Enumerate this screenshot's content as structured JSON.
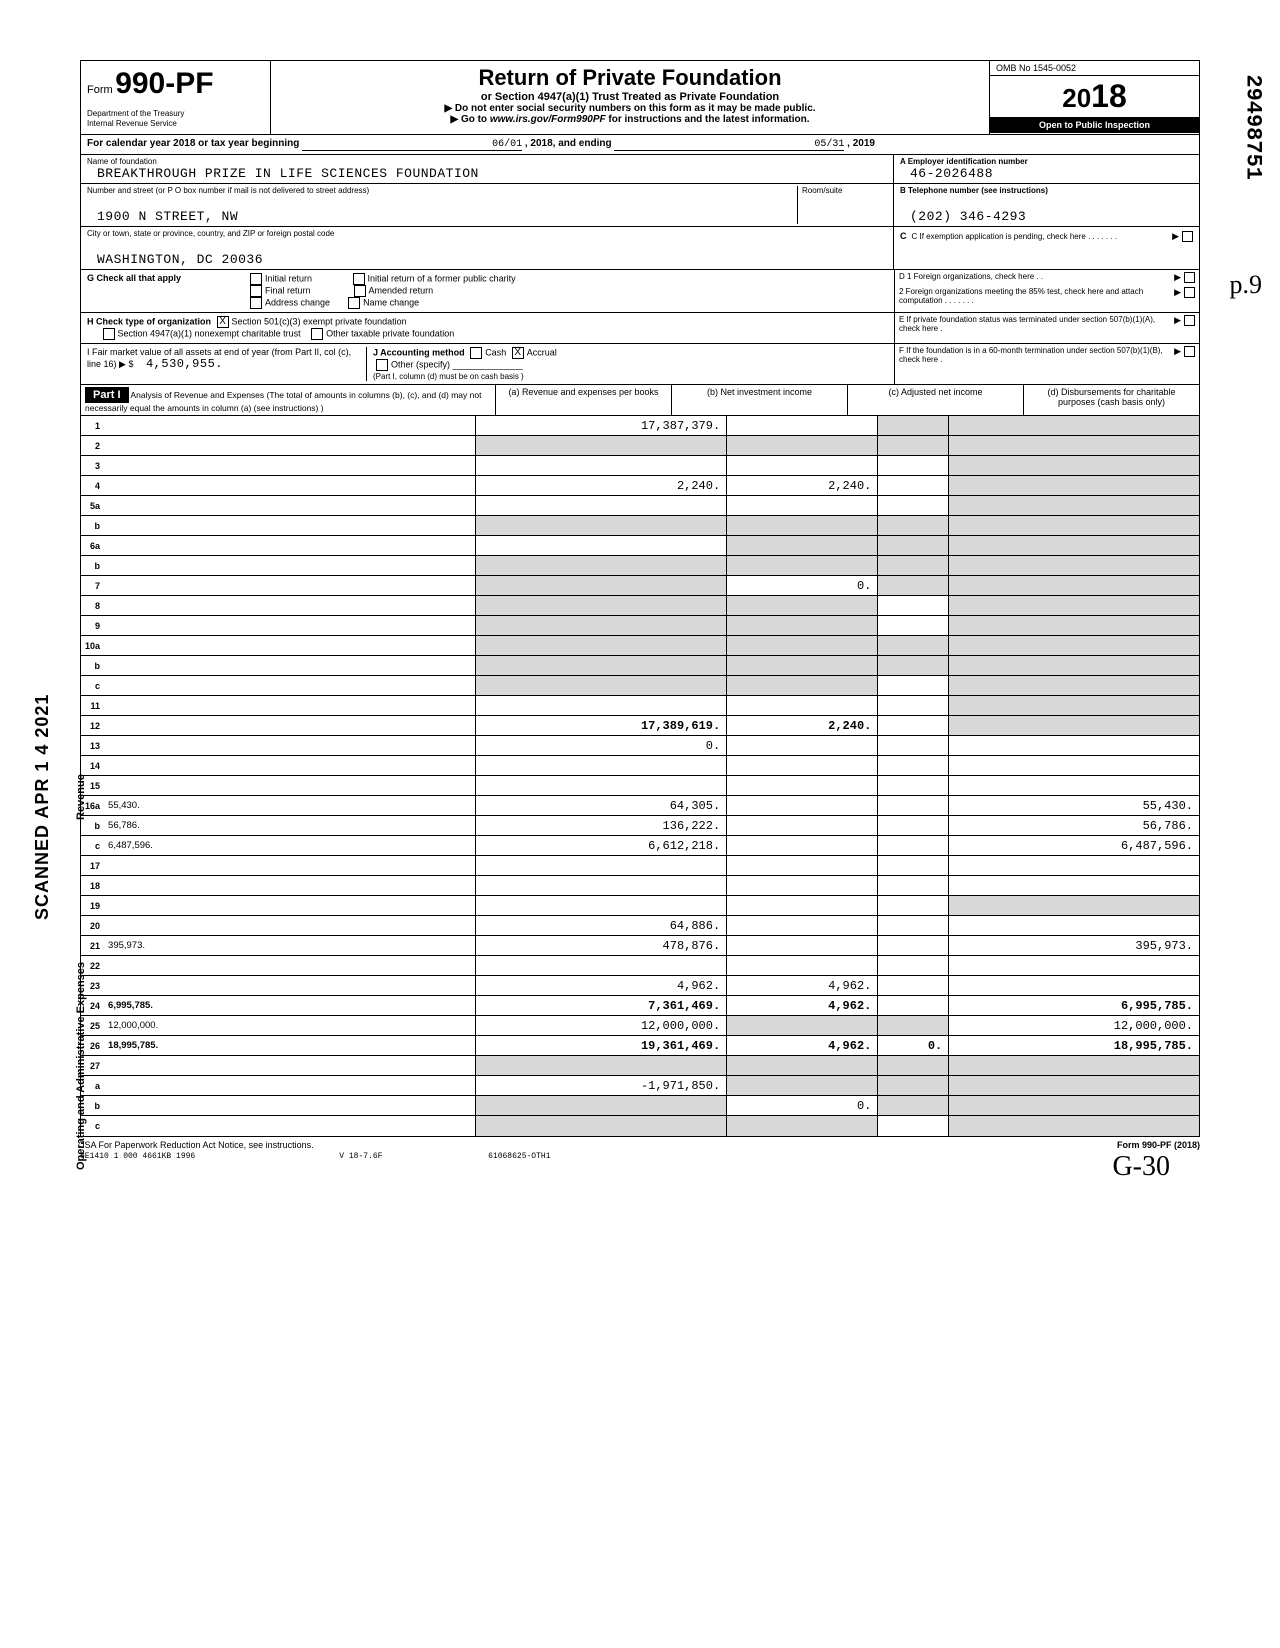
{
  "header": {
    "form_word": "Form",
    "form_number": "990-PF",
    "dept1": "Department of the Treasury",
    "dept2": "Internal Revenue Service",
    "title": "Return of Private Foundation",
    "subtitle": "or Section 4947(a)(1) Trust Treated as Private Foundation",
    "note": "▶ Do not enter social security numbers on this form as it may be made public.",
    "note2_a": "▶ Go to",
    "note2_url": "www.irs.gov/Form990PF",
    "note2_b": "for instructions and the latest information.",
    "omb": "OMB No 1545-0052",
    "year_prefix": "20",
    "year_suffix": "18",
    "open": "Open to Public Inspection"
  },
  "period": {
    "label": "For calendar year 2018 or tax year beginning",
    "start": "06/01",
    "mid": ", 2018, and ending",
    "end": "05/31",
    "endyear": ", 2019"
  },
  "entity": {
    "name_label": "Name of foundation",
    "name": "BREAKTHROUGH PRIZE IN LIFE SCIENCES FOUNDATION",
    "addr_label": "Number and street (or P O  box number if mail is not delivered to street address)",
    "addr": "1900 N STREET, NW",
    "room_label": "Room/suite",
    "city_label": "City or town, state or province, country, and ZIP or foreign postal code",
    "city": "WASHINGTON, DC 20036",
    "a_label": "A  Employer identification number",
    "ein": "46-2026488",
    "b_label": "B  Telephone number (see instructions)",
    "phone": "(202) 346-4293",
    "c_label": "C  If exemption application is pending, check here . . . . . . ."
  },
  "g": {
    "label": "G Check all that apply",
    "opts": [
      "Initial return",
      "Final return",
      "Address change",
      "Initial return of a former public charity",
      "Amended return",
      "Name change"
    ],
    "d1": "D  1  Foreign organizations, check here . .",
    "d2": "2  Foreign organizations meeting the 85% test, check here and attach computation  . . . . . . .",
    "e": "E   If private foundation status was terminated under section 507(b)(1)(A), check here  .",
    "f": "F   If the foundation is in a 60-month termination under section 507(b)(1)(B), check here  ."
  },
  "h": {
    "label": "H Check type of organization",
    "opt1": "Section 501(c)(3) exempt private foundation",
    "sub": "Section 4947(a)(1) nonexempt charitable trust",
    "opt2": "Other taxable private foundation"
  },
  "i": {
    "label": "I   Fair market value of all assets at end of year  (from Part II, col  (c), line 16) ▶  $",
    "value": "4,530,955.",
    "j_label": "J Accounting method",
    "cash": "Cash",
    "accrual": "Accrual",
    "other": "Other (specify)",
    "note": "(Part I, column (d) must be on cash basis )"
  },
  "part1": {
    "label": "Part I",
    "desc": "Analysis of Revenue and Expenses (The total of amounts in columns (b), (c), and (d) may not necessarily equal the amounts in column (a) (see instructions) )",
    "cols": {
      "a": "(a) Revenue and expenses per books",
      "b": "(b) Net investment income",
      "c": "(c) Adjusted net income",
      "d": "(d) Disbursements for charitable purposes (cash basis only)"
    }
  },
  "rows": [
    {
      "n": "1",
      "d": "",
      "a": "17,387,379.",
      "b": "",
      "c": "",
      "shade_b": false,
      "shade_c": true,
      "shade_d": true
    },
    {
      "n": "2",
      "d": "",
      "a": "",
      "b": "",
      "c": "",
      "shade_a": true,
      "shade_b": true,
      "shade_c": true,
      "shade_d": true
    },
    {
      "n": "3",
      "d": "",
      "a": "",
      "b": "",
      "c": "",
      "shade_d": true
    },
    {
      "n": "4",
      "d": "",
      "a": "2,240.",
      "b": "2,240.",
      "c": "",
      "shade_d": true
    },
    {
      "n": "5a",
      "d": "",
      "a": "",
      "b": "",
      "c": "",
      "shade_d": true
    },
    {
      "n": "b",
      "d": "",
      "a": "",
      "b": "",
      "c": "",
      "shade_a": true,
      "shade_b": true,
      "shade_c": true,
      "shade_d": true
    },
    {
      "n": "6a",
      "d": "",
      "a": "",
      "b": "",
      "c": "",
      "shade_b": true,
      "shade_c": true,
      "shade_d": true
    },
    {
      "n": "b",
      "d": "",
      "a": "",
      "b": "",
      "c": "",
      "shade_a": true,
      "shade_b": true,
      "shade_c": true,
      "shade_d": true
    },
    {
      "n": "7",
      "d": "",
      "a": "",
      "b": "0.",
      "c": "",
      "shade_a": true,
      "shade_c": true,
      "shade_d": true
    },
    {
      "n": "8",
      "d": "",
      "a": "",
      "b": "",
      "c": "",
      "shade_a": true,
      "shade_b": true,
      "shade_d": true
    },
    {
      "n": "9",
      "d": "",
      "a": "",
      "b": "",
      "c": "",
      "shade_a": true,
      "shade_b": true,
      "shade_d": true
    },
    {
      "n": "10a",
      "d": "",
      "a": "",
      "b": "",
      "c": "",
      "shade_a": true,
      "shade_b": true,
      "shade_c": true,
      "shade_d": true
    },
    {
      "n": "b",
      "d": "",
      "a": "",
      "b": "",
      "c": "",
      "shade_a": true,
      "shade_b": true,
      "shade_c": true,
      "shade_d": true
    },
    {
      "n": "c",
      "d": "",
      "a": "",
      "b": "",
      "c": "",
      "shade_a": true,
      "shade_b": true,
      "shade_d": true
    },
    {
      "n": "11",
      "d": "",
      "a": "",
      "b": "",
      "c": "",
      "shade_d": true
    },
    {
      "n": "12",
      "d": "",
      "a": "17,389,619.",
      "b": "2,240.",
      "c": "",
      "total": true,
      "shade_d": true
    },
    {
      "n": "13",
      "d": "",
      "a": "0.",
      "b": "",
      "c": ""
    },
    {
      "n": "14",
      "d": "",
      "a": "",
      "b": "",
      "c": ""
    },
    {
      "n": "15",
      "d": "",
      "a": "",
      "b": "",
      "c": ""
    },
    {
      "n": "16a",
      "d": "55,430.",
      "a": "64,305.",
      "b": "",
      "c": ""
    },
    {
      "n": "b",
      "d": "56,786.",
      "a": "136,222.",
      "b": "",
      "c": ""
    },
    {
      "n": "c",
      "d": "6,487,596.",
      "a": "6,612,218.",
      "b": "",
      "c": ""
    },
    {
      "n": "17",
      "d": "",
      "a": "",
      "b": "",
      "c": ""
    },
    {
      "n": "18",
      "d": "",
      "a": "",
      "b": "",
      "c": ""
    },
    {
      "n": "19",
      "d": "",
      "a": "",
      "b": "",
      "c": "",
      "shade_d": true
    },
    {
      "n": "20",
      "d": "",
      "a": "64,886.",
      "b": "",
      "c": ""
    },
    {
      "n": "21",
      "d": "395,973.",
      "a": "478,876.",
      "b": "",
      "c": ""
    },
    {
      "n": "22",
      "d": "",
      "a": "",
      "b": "",
      "c": ""
    },
    {
      "n": "23",
      "d": "",
      "a": "4,962.",
      "b": "4,962.",
      "c": ""
    },
    {
      "n": "24",
      "d": "6,995,785.",
      "a": "7,361,469.",
      "b": "4,962.",
      "c": "",
      "total": true
    },
    {
      "n": "25",
      "d": "12,000,000.",
      "a": "12,000,000.",
      "b": "",
      "c": "",
      "shade_b": true,
      "shade_c": true
    },
    {
      "n": "26",
      "d": "18,995,785.",
      "a": "19,361,469.",
      "b": "4,962.",
      "c": "0.",
      "total": true
    },
    {
      "n": "27",
      "d": "",
      "a": "",
      "b": "",
      "c": "",
      "shade_a": true,
      "shade_b": true,
      "shade_c": true,
      "shade_d": true
    },
    {
      "n": "a",
      "d": "",
      "a": "-1,971,850.",
      "b": "",
      "c": "",
      "shade_b": true,
      "shade_c": true,
      "shade_d": true
    },
    {
      "n": "b",
      "d": "",
      "a": "",
      "b": "0.",
      "c": "",
      "shade_a": true,
      "shade_c": true,
      "shade_d": true
    },
    {
      "n": "c",
      "d": "",
      "a": "",
      "b": "",
      "c": "",
      "shade_a": true,
      "shade_b": true,
      "shade_d": true
    }
  ],
  "footer": {
    "left": "JSA  For Paperwork Reduction Act Notice, see instructions.",
    "jsa": "8E1410 1 000   4661KB 1996",
    "mid": "V 18-7.6F",
    "right_code": "61068625-OTH1",
    "form": "Form 990-PF (2018)"
  },
  "margins": {
    "scanned": "SCANNED APR 1 4 2021",
    "side_rev": "Revenue",
    "side_op": "Operating and Administrative Expenses",
    "right_num": "29498751",
    "hand_init": "p.9",
    "hand_note": "G-30"
  },
  "style": {
    "mono": "Courier New",
    "shade": "#d8d8d8"
  }
}
